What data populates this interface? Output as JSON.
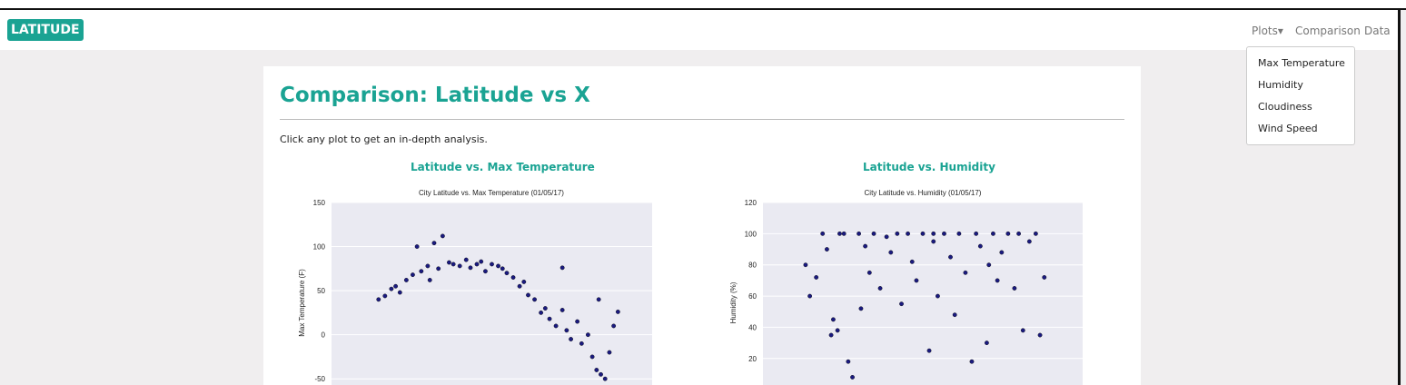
{
  "navbar": {
    "brand": "LATITUDE",
    "links": [
      "Plots",
      "Comparison",
      "Data"
    ],
    "dropdown": [
      "Max Temperature",
      "Humidity",
      "Cloudiness",
      "Wind Speed"
    ]
  },
  "page": {
    "title": "Comparison: Latitude vs X",
    "intro": "Click any plot to get an in-depth analysis.",
    "plot_headings": [
      "Latitude vs. Max Temperature",
      "Latitude vs. Humidity"
    ]
  },
  "chart_data": [
    {
      "type": "scatter",
      "title": "City Latitude vs. Max Temperature (01/05/17)",
      "y_label": "Max Temperature (F)",
      "color": "#1a1a80",
      "xlim": [
        -60,
        90
      ],
      "ylim": [
        -57,
        150
      ],
      "yticks": [
        -50,
        0,
        50,
        100,
        150
      ],
      "grid": true,
      "x": [
        -38,
        -35,
        -32,
        -30,
        -28,
        -25,
        -22,
        -20,
        -18,
        -15,
        -14,
        -12,
        -10,
        -8,
        -5,
        -3,
        0,
        3,
        5,
        8,
        10,
        12,
        15,
        18,
        20,
        22,
        25,
        28,
        30,
        32,
        35,
        38,
        40,
        42,
        45,
        48,
        50,
        52,
        55,
        57,
        60,
        62,
        64,
        66,
        68,
        70,
        72,
        74,
        65,
        48
      ],
      "values": [
        40,
        44,
        52,
        55,
        48,
        62,
        68,
        100,
        72,
        78,
        62,
        104,
        75,
        112,
        82,
        80,
        78,
        85,
        76,
        80,
        83,
        72,
        80,
        78,
        75,
        70,
        65,
        55,
        60,
        45,
        40,
        25,
        30,
        18,
        10,
        28,
        5,
        -5,
        15,
        -10,
        0,
        -25,
        -40,
        -45,
        -50,
        -20,
        10,
        26,
        40,
        76
      ]
    },
    {
      "type": "scatter",
      "title": "City Latitude vs. Humidity (01/05/17)",
      "y_label": "Humidity (%)",
      "color": "#1a1a80",
      "xlim": [
        -60,
        90
      ],
      "ylim": [
        3,
        120
      ],
      "yticks": [
        20,
        40,
        60,
        80,
        100,
        120
      ],
      "grid": true,
      "x": [
        -40,
        -38,
        -35,
        -32,
        -30,
        -28,
        -27,
        -25,
        -22,
        -20,
        -18,
        -15,
        -12,
        -10,
        -8,
        -5,
        -2,
        0,
        3,
        5,
        8,
        10,
        12,
        15,
        18,
        20,
        22,
        25,
        28,
        30,
        32,
        35,
        38,
        40,
        42,
        45,
        48,
        50,
        52,
        55,
        58,
        60,
        62,
        65,
        68,
        70,
        72,
        -24,
        -14,
        20,
        46
      ],
      "values": [
        80,
        60,
        72,
        100,
        90,
        35,
        45,
        38,
        100,
        18,
        8,
        100,
        92,
        75,
        100,
        65,
        98,
        88,
        100,
        55,
        100,
        82,
        70,
        100,
        25,
        95,
        60,
        100,
        85,
        48,
        100,
        75,
        18,
        100,
        92,
        30,
        100,
        70,
        88,
        100,
        65,
        100,
        38,
        95,
        100,
        35,
        72,
        100,
        52,
        100,
        80
      ]
    }
  ]
}
